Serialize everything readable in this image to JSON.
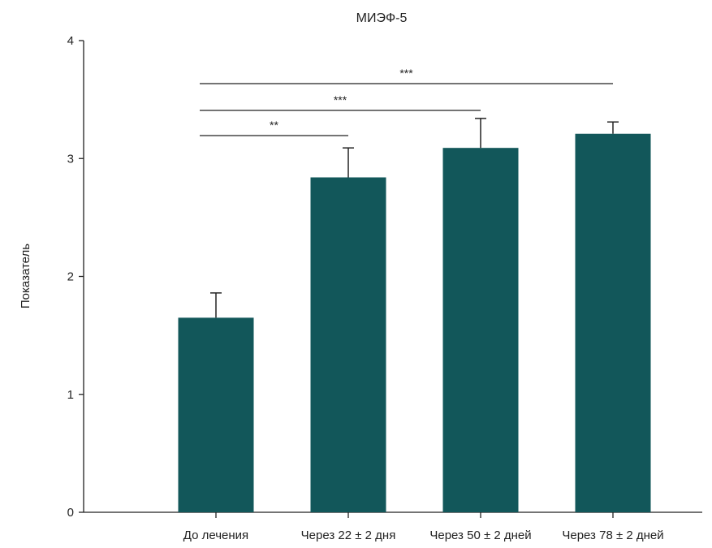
{
  "chart_data": {
    "type": "bar",
    "title": "МИЭФ-5",
    "xlabel": "",
    "ylabel": "Показатель",
    "ylim": [
      0,
      4
    ],
    "yticks": [
      0,
      1,
      2,
      3,
      4
    ],
    "categories": [
      "До лечения",
      "Через 22 ± 2 дня",
      "Через 50 ± 2 дней",
      "Через 78 ± 2 дней"
    ],
    "values": [
      1.65,
      2.84,
      3.09,
      3.21
    ],
    "errors": [
      0.21,
      0.25,
      0.25,
      0.1
    ],
    "grid": false,
    "bar_color": "#12575A",
    "significance": [
      {
        "from": 0,
        "to": 1,
        "label": "**"
      },
      {
        "from": 0,
        "to": 2,
        "label": "***"
      },
      {
        "from": 0,
        "to": 3,
        "label": "***"
      }
    ]
  }
}
